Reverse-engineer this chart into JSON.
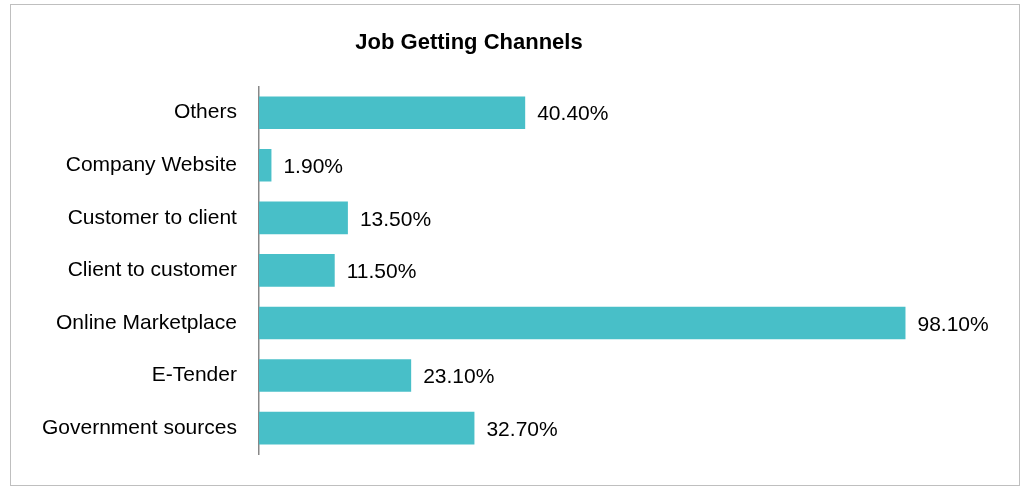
{
  "chart_data": {
    "type": "bar",
    "orientation": "horizontal",
    "title": "Job Getting Channels",
    "categories": [
      "Others",
      "Company Website",
      "Customer to client",
      "Client to customer",
      "Online Marketplace",
      "E-Tender",
      "Government sources"
    ],
    "values": [
      40.4,
      1.9,
      13.5,
      11.5,
      98.1,
      23.1,
      32.7
    ],
    "value_labels": [
      "40.40%",
      "1.90%",
      "13.50%",
      "11.50%",
      "98.10%",
      "23.10%",
      "32.70%"
    ],
    "color": "#48bfc8",
    "tick_labels": "y"
  }
}
